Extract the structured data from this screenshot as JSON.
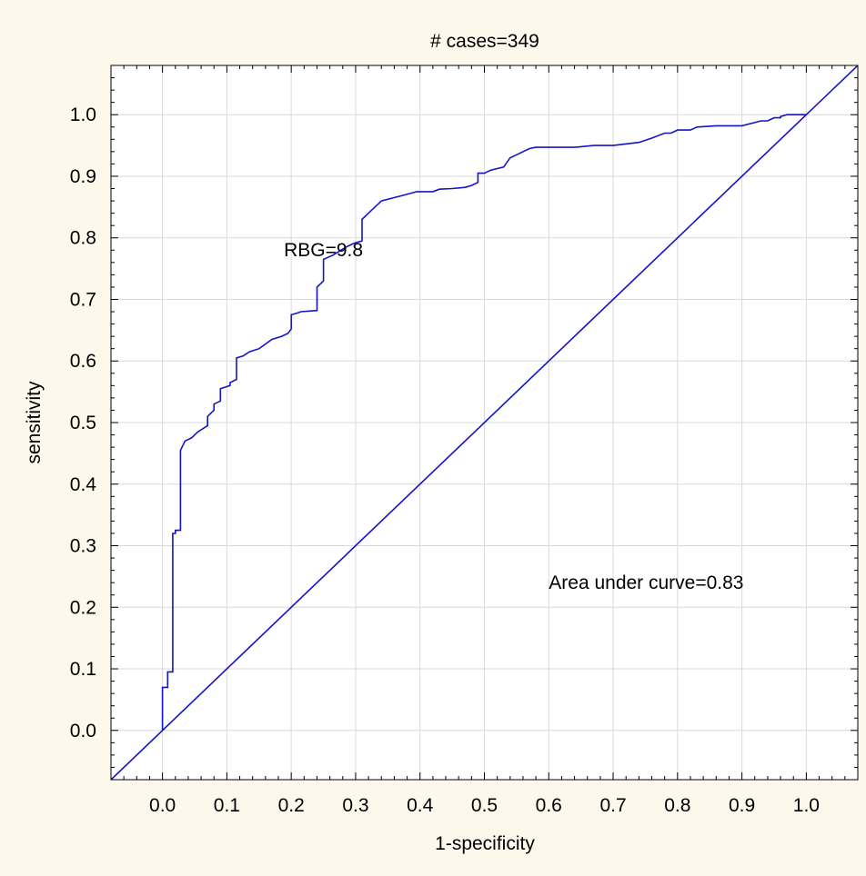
{
  "colors": {
    "background": "#fdf8ec",
    "plot_area": "#ffffff",
    "grid": "#d9d9d9",
    "curve": "#1414c8",
    "text": "#000000"
  },
  "chart_data": {
    "type": "line",
    "title": "# cases=349",
    "xlabel": "1-specificity",
    "ylabel": "sensitivity",
    "xlim": [
      -0.08,
      1.08
    ],
    "ylim": [
      -0.08,
      1.08
    ],
    "xticks": [
      0.0,
      0.1,
      0.2,
      0.3,
      0.4,
      0.5,
      0.6,
      0.7,
      0.8,
      0.9,
      1.0
    ],
    "yticks": [
      0.0,
      0.1,
      0.2,
      0.3,
      0.4,
      0.5,
      0.6,
      0.7,
      0.8,
      0.9,
      1.0
    ],
    "xtick_labels": [
      "0.0",
      "0.1",
      "0.2",
      "0.3",
      "0.4",
      "0.5",
      "0.6",
      "0.7",
      "0.8",
      "0.9",
      "1.0"
    ],
    "ytick_labels": [
      "0.0",
      "0.1",
      "0.2",
      "0.3",
      "0.4",
      "0.5",
      "0.6",
      "0.7",
      "0.8",
      "0.9",
      "1.0"
    ],
    "grid": true,
    "series": [
      {
        "role": "roc-curve",
        "color": "#1414c8",
        "x": [
          0.0,
          0.0,
          0.008,
          0.008,
          0.016,
          0.016,
          0.02,
          0.02,
          0.028,
          0.028,
          0.035,
          0.045,
          0.055,
          0.07,
          0.07,
          0.08,
          0.08,
          0.09,
          0.09,
          0.105,
          0.105,
          0.115,
          0.115,
          0.125,
          0.135,
          0.15,
          0.17,
          0.185,
          0.195,
          0.2,
          0.2,
          0.21,
          0.215,
          0.215,
          0.24,
          0.24,
          0.25,
          0.25,
          0.265,
          0.285,
          0.295,
          0.3,
          0.31,
          0.31,
          0.32,
          0.34,
          0.37,
          0.395,
          0.42,
          0.43,
          0.45,
          0.47,
          0.48,
          0.49,
          0.49,
          0.5,
          0.51,
          0.53,
          0.54,
          0.55,
          0.57,
          0.58,
          0.64,
          0.67,
          0.7,
          0.74,
          0.76,
          0.78,
          0.79,
          0.8,
          0.82,
          0.83,
          0.86,
          0.9,
          0.93,
          0.94,
          0.95,
          0.96,
          0.96,
          0.97,
          0.98,
          0.98,
          0.99,
          1.0
        ],
        "y": [
          0.0,
          0.07,
          0.07,
          0.095,
          0.095,
          0.32,
          0.32,
          0.325,
          0.325,
          0.455,
          0.47,
          0.475,
          0.485,
          0.495,
          0.51,
          0.52,
          0.53,
          0.535,
          0.555,
          0.56,
          0.565,
          0.57,
          0.605,
          0.608,
          0.615,
          0.62,
          0.635,
          0.64,
          0.645,
          0.652,
          0.675,
          0.678,
          0.68,
          0.68,
          0.682,
          0.72,
          0.73,
          0.765,
          0.772,
          0.785,
          0.79,
          0.792,
          0.795,
          0.83,
          0.84,
          0.86,
          0.868,
          0.875,
          0.875,
          0.879,
          0.88,
          0.882,
          0.885,
          0.89,
          0.905,
          0.905,
          0.91,
          0.915,
          0.93,
          0.935,
          0.945,
          0.947,
          0.947,
          0.95,
          0.95,
          0.955,
          0.962,
          0.97,
          0.97,
          0.975,
          0.975,
          0.98,
          0.982,
          0.982,
          0.99,
          0.99,
          0.995,
          0.995,
          0.997,
          1.0,
          1.0,
          1.0,
          1.0,
          1.0
        ]
      },
      {
        "role": "reference-diagonal",
        "color": "#1414c8",
        "x": [
          -0.08,
          1.08
        ],
        "y": [
          -0.08,
          1.08
        ]
      }
    ],
    "annotations": [
      {
        "text": "RBG=9.8",
        "x": 0.25,
        "y": 0.77
      },
      {
        "text": "Area under curve=0.83",
        "x": 0.6,
        "y": 0.23
      }
    ]
  }
}
